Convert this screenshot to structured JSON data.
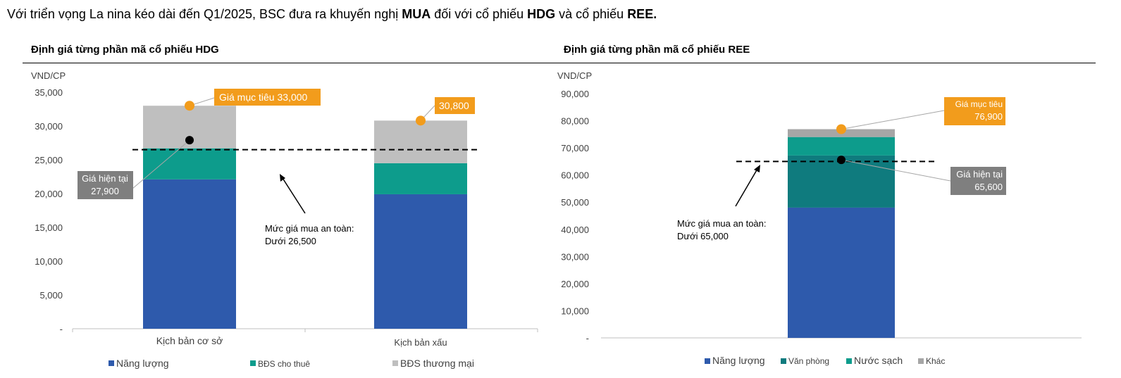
{
  "intro": {
    "parts": [
      {
        "text": "Với triển vọng La nina kéo dài đến Q1/2025, BSC đưa ra khuyến nghị ",
        "bold": false
      },
      {
        "text": "MUA",
        "bold": true
      },
      {
        "text": " đối với cổ phiếu ",
        "bold": false
      },
      {
        "text": "HDG",
        "bold": true
      },
      {
        "text": " và cổ phiếu ",
        "bold": false
      },
      {
        "text": "REE.",
        "bold": true
      }
    ]
  },
  "colors": {
    "energy": "#2E5AAC",
    "rental": "#0D9C8C",
    "commercial": "#BFBFBF",
    "office": "#0F7B7E",
    "water": "#0D9C8C",
    "other": "#A6A6A6",
    "target": "#F29C1C",
    "current_box": "#7F7F7F"
  },
  "chart_data": [
    {
      "id": "hdg",
      "type": "bar",
      "stacked": true,
      "title": "Định giá từng phần mã cổ phiếu HDG",
      "ylabel": "VND/CP",
      "ylim": [
        0,
        37500
      ],
      "yticks": [
        0,
        5000,
        10000,
        15000,
        20000,
        25000,
        30000,
        35000
      ],
      "ytick_labels": [
        "-",
        "5,000",
        "10,000",
        "15,000",
        "20,000",
        "25,000",
        "30,000",
        "35,000"
      ],
      "categories": [
        "Kịch bản cơ sở",
        "Kịch bản xấu"
      ],
      "series": [
        {
          "name": "Năng lượng",
          "color_key": "energy",
          "values": [
            22100,
            19900
          ]
        },
        {
          "name": "BĐS cho thuê",
          "color_key": "rental",
          "values": [
            4600,
            4600
          ]
        },
        {
          "name": "BĐS thương mại",
          "color_key": "commercial",
          "values": [
            6300,
            6300
          ]
        }
      ],
      "target_points": [
        33000,
        30800
      ],
      "target_labels": [
        "Giá mục tiêu  33,000",
        "30,800"
      ],
      "current_price": 27900,
      "current_label": [
        "Giá hiện tại",
        "27,900"
      ],
      "safe_level": 26500,
      "safe_label": [
        "Mức giá mua an toàn:",
        "Dưới 26,500"
      ]
    },
    {
      "id": "ree",
      "type": "bar",
      "stacked": true,
      "title": "Định giá từng phần mã cổ phiếu REE",
      "ylabel": "VND/CP",
      "ylim": [
        0,
        90000
      ],
      "yticks": [
        0,
        10000,
        20000,
        30000,
        40000,
        50000,
        60000,
        70000,
        80000,
        90000
      ],
      "ytick_labels": [
        "-",
        "10,000",
        "20,000",
        "30,000",
        "40,000",
        "50,000",
        "60,000",
        "70,000",
        "80,000",
        "90,000"
      ],
      "categories": [
        ""
      ],
      "series": [
        {
          "name": "Năng lượng",
          "color_key": "energy",
          "values": [
            48000
          ]
        },
        {
          "name": "Văn phòng",
          "color_key": "office",
          "values": [
            19200
          ]
        },
        {
          "name": "Nước sạch",
          "color_key": "water",
          "values": [
            6800
          ]
        },
        {
          "name": "Khác",
          "color_key": "other",
          "values": [
            2900
          ]
        }
      ],
      "target_points": [
        76900
      ],
      "target_label": [
        "Giá mục tiêu",
        "76,900"
      ],
      "current_price": 65600,
      "current_label": [
        "Giá hiện tại",
        "65,600"
      ],
      "safe_level": 65000,
      "safe_label": [
        "Mức giá mua an toàn:",
        "Dưới 65,000"
      ]
    }
  ]
}
